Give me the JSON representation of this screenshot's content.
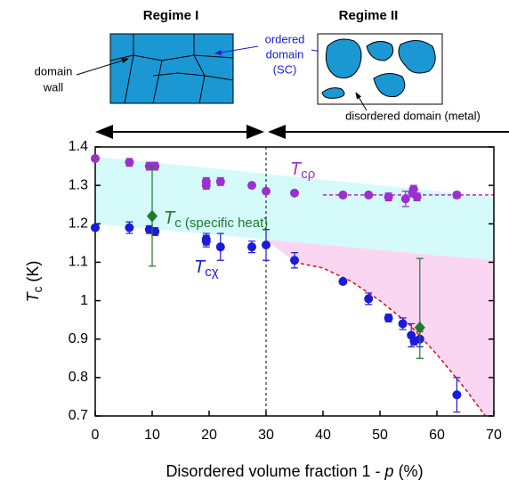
{
  "diagrams": {
    "regime1": {
      "title": "Regime I",
      "labels": [
        "domain",
        "wall"
      ]
    },
    "regime2": {
      "title": "Regime II",
      "ordered": [
        "ordered",
        "domain",
        "(SC)"
      ],
      "disordered": "disordered domain (metal)"
    }
  },
  "chart_data": {
    "type": "scatter",
    "xlabel": {
      "text": "Disordered volume fraction 1 - ",
      "italic": "p",
      "rest": " (%)"
    },
    "ylabel": {
      "italic": "T",
      "sub": "c",
      "rest": " (K)"
    },
    "xlim": [
      0,
      70
    ],
    "ylim": [
      0.7,
      1.4
    ],
    "xticks": [
      0,
      10,
      20,
      30,
      40,
      50,
      60,
      70
    ],
    "yticks": [
      0.7,
      0.8,
      0.9,
      1,
      1.1,
      1.2,
      1.3,
      1.4
    ],
    "vline": 30,
    "bands": [
      {
        "color": "#d4fafa",
        "x": [
          0,
          70
        ],
        "lower": [
          1.2,
          1.105
        ],
        "upper": [
          1.375,
          1.27
        ]
      },
      {
        "color": "#fbd6f3",
        "x": [
          30,
          35,
          40,
          45,
          50,
          55,
          60,
          65,
          68.5,
          70
        ],
        "upper": [
          1.159,
          1.152,
          1.146,
          1.139,
          1.132,
          1.125,
          1.118,
          1.112,
          1.107,
          1.105
        ],
        "lower": [
          1.159,
          1.1,
          1.085,
          1.05,
          1.0,
          0.94,
          0.86,
          0.77,
          0.7,
          0.7
        ]
      }
    ],
    "lines": [
      {
        "color": "#e01010",
        "x": [
          35,
          40,
          45,
          50,
          55,
          60,
          65,
          68.5
        ],
        "values": [
          1.1,
          1.085,
          1.05,
          1.0,
          0.94,
          0.86,
          0.77,
          0.7
        ]
      },
      {
        "color": "#c020d0",
        "x": [
          40,
          70
        ],
        "values": [
          1.275,
          1.275
        ]
      }
    ],
    "series": [
      {
        "color": "#9b30d0",
        "marker": "circle",
        "x": [
          0,
          6,
          9.5,
          10.5,
          19.5,
          19.5,
          22,
          27.5,
          30,
          35,
          43.5,
          48,
          51.5,
          54.5,
          55.7,
          55.9,
          56.5,
          63.5
        ],
        "values": [
          1.37,
          1.36,
          1.35,
          1.35,
          1.31,
          1.3,
          1.31,
          1.3,
          1.285,
          1.28,
          1.275,
          1.275,
          1.27,
          1.265,
          1.28,
          1.29,
          1.27,
          1.275
        ],
        "yerr": [
          0.005,
          0.01,
          0.01,
          0.01,
          0.01,
          0.01,
          0.01,
          0.005,
          0.005,
          0.005,
          0.005,
          0.005,
          0.01,
          0.02,
          0.01,
          0.01,
          0.01,
          0.008
        ]
      },
      {
        "color": "#1b1bd8",
        "marker": "circle",
        "x": [
          0,
          6,
          9.5,
          10.5,
          19.5,
          19.5,
          22,
          27.5,
          30,
          35,
          43.5,
          48,
          51.5,
          54,
          55.5,
          56,
          57,
          63.5
        ],
        "values": [
          1.19,
          1.19,
          1.185,
          1.18,
          1.16,
          1.155,
          1.14,
          1.14,
          1.145,
          1.105,
          1.05,
          1.005,
          0.955,
          0.94,
          0.91,
          0.895,
          0.9,
          0.755
        ],
        "yerr": [
          0.005,
          0.015,
          0.01,
          0.01,
          0.015,
          0.015,
          0.035,
          0.015,
          0.04,
          0.02,
          0.005,
          0.015,
          0.01,
          0.015,
          0.03,
          0.01,
          0.02,
          0.045
        ]
      },
      {
        "color": "#1f7a2e",
        "marker": "diamond",
        "x": [
          10,
          57
        ],
        "values": [
          1.22,
          0.93
        ],
        "yerr_low": [
          0.13,
          0.08
        ],
        "yerr_high": [
          0.13,
          0.18
        ]
      }
    ],
    "annotations": [
      {
        "italic": "T",
        "sub": "cρ",
        "rest": "",
        "color": "#9b30d0"
      },
      {
        "italic": "T",
        "sub": "c (specific heat)",
        "rest": "",
        "color": "#1f7a2e"
      },
      {
        "italic": "T",
        "sub": "cχ",
        "rest": "",
        "color": "#1b1bd8"
      }
    ]
  }
}
